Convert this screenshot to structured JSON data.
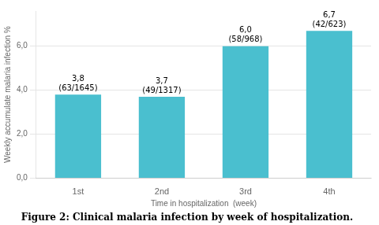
{
  "chart_data": {
    "type": "bar",
    "title": "Figure 2: Clinical malaria infection by week of hospitalization.",
    "xlabel": "Time in hospitalization  (week)",
    "ylabel": "Weekly accumulate malaria infection %",
    "categories": [
      "1st",
      "2nd",
      "3rd",
      "4th"
    ],
    "values": [
      3.8,
      3.7,
      6.0,
      6.7
    ],
    "value_labels": [
      "3,8",
      "3,7",
      "6,0",
      "6,7"
    ],
    "annotations": [
      "(63/1645)",
      "(49/1317)",
      "(58/968)",
      "(42/623)"
    ],
    "data_labels": true,
    "color": "#4ABFCF",
    "ylim": [
      0,
      7.6
    ],
    "yticks": [
      {
        "value": 0.0,
        "label": "0,0"
      },
      {
        "value": 2.0,
        "label": "2,0"
      },
      {
        "value": 4.0,
        "label": "4,0"
      },
      {
        "value": 6.0,
        "label": "6,0"
      }
    ],
    "grid": true
  }
}
